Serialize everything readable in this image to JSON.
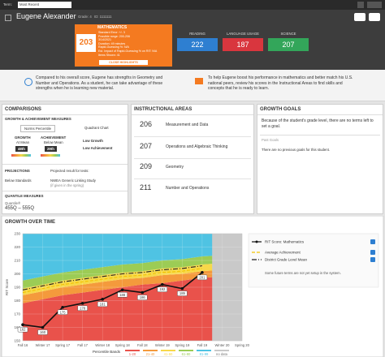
{
  "topbar": {
    "term_label": "Term:",
    "term_value": "Most Recent"
  },
  "header": {
    "student_name": "Eugene Alexander",
    "grade": "Grade: 4",
    "id": "ID: 1111111"
  },
  "math_card": {
    "subject": "MATHEMATICS",
    "score": 203,
    "details": [
      "Standard Error: +/- 3",
      "Possible range: 200-206",
      "3/14/2021",
      "Duration: 49 minutes",
      "Rapid-Guessing %: N/A",
      "Est. Impact of Rapid-Guessing % on RIT: N/A",
      "Items Shown: 41"
    ],
    "button": "CLOSE HIGHLIGHTS"
  },
  "subject_scores": [
    {
      "subject": "READING",
      "score": 222,
      "color": "#2e7fd1"
    },
    {
      "subject": "LANGUAGE USAGE",
      "score": 187,
      "color": "#d9363e"
    },
    {
      "subject": "SCIENCE",
      "score": 207,
      "color": "#33a65a"
    }
  ],
  "highlights": [
    "Compared to his overall score, Eugene has strengths in Geometry and Number and Operations. As a student, he can take advantage of these strengths when he is learning new material.",
    "To help Eugene boost his performance in mathematics and better match his U.S. national peers, review his scores in the Instructional Areas to find skills and concepts that he is ready to learn."
  ],
  "comparisons": {
    "title": "COMPARISONS",
    "subtitle": "GROWTH & ACHIEVEMENT MEASURES",
    "tabs": [
      "Norms Percentile",
      "Quadrant Chart"
    ],
    "growth_label": "GROWTH",
    "growth_desc": "At Mean",
    "growth_percentile": "48th",
    "achievement_label": "ACHIEVEMENT",
    "achievement_desc": "Below Mean",
    "achievement_percentile": "29th",
    "quadrant_growth": "Low Growth",
    "quadrant_achievement": "Low Achievement",
    "projections_title": "PROJECTIONS",
    "projections_note": "Projected result for tests:",
    "projection_result": "Below Standards",
    "projection_study": "NWEA Generic Linking Study",
    "projection_when": "(if given in the spring)",
    "quantile_title": "QUANTILE MEASURES",
    "quantile_label": "Quantile®",
    "quantile_range": "455Q – 555Q"
  },
  "instructional_areas": {
    "title": "INSTRUCTIONAL AREAS",
    "items": [
      {
        "score": 206,
        "name": "Measurement and Data"
      },
      {
        "score": 207,
        "name": "Operations and Algebraic Thinking"
      },
      {
        "score": 209,
        "name": "Geometry"
      },
      {
        "score": 211,
        "name": "Number and Operations"
      }
    ]
  },
  "growth_goals": {
    "title": "GROWTH GOALS",
    "message": "Because of the student's grade level, there are no terms left to set a goal.",
    "past_label": "Past Goals",
    "past_message": "There are no previous goals for this student."
  },
  "chart_data": {
    "type": "line",
    "title": "GROWTH OVER TIME",
    "y_label": "RIT Score",
    "categories": [
      "Fall 16",
      "Winter 17",
      "Spring 17",
      "Fall 17",
      "Winter 18",
      "Spring 18",
      "Fall 18",
      "Winter 19",
      "Spring 19",
      "Fall 19",
      "Winter 20",
      "Spring 20"
    ],
    "ylim": [
      150,
      230
    ],
    "yticks": [
      150,
      160,
      170,
      180,
      190,
      200,
      210,
      220,
      230
    ],
    "grid": true,
    "bands_title": "Percentile Bands",
    "bands": [
      {
        "name": "1-20",
        "color": "#e9524b",
        "upper": [
          178,
          181,
          184,
          186,
          188,
          190,
          192,
          193,
          195,
          197,
          198,
          200
        ]
      },
      {
        "name": "21-40",
        "color": "#f49a3c",
        "upper": [
          184,
          187,
          190,
          192,
          194,
          196,
          197,
          199,
          200,
          202,
          203,
          205
        ]
      },
      {
        "name": "41-60",
        "color": "#f7d84a",
        "upper": [
          189,
          192,
          195,
          197,
          199,
          201,
          202,
          204,
          205,
          207,
          208,
          210
        ]
      },
      {
        "name": "61-80",
        "color": "#9ccc55",
        "upper": [
          195,
          198,
          201,
          203,
          205,
          207,
          208,
          210,
          211,
          213,
          214,
          216
        ]
      },
      {
        "name": "81-99",
        "color": "#4fc3e3",
        "upper": [
          230,
          230,
          230,
          230,
          230,
          230,
          230,
          230,
          230,
          230,
          230,
          230
        ]
      }
    ],
    "no_data_label": "no data",
    "no_data_color": "#c9c9c9",
    "series": [
      {
        "name": "RIT Score: Mathematics",
        "color": "#111111",
        "style": "solid",
        "values": [
          162,
          160,
          175,
          178,
          181,
          188,
          186,
          192,
          189,
          201,
          null,
          null
        ]
      },
      {
        "name": "Average Achievement",
        "color": "#f2c400",
        "style": "dashed",
        "values": [
          186,
          189,
          192,
          194,
          196,
          198,
          199,
          201,
          202,
          204,
          null,
          null
        ]
      },
      {
        "name": "District Grade Level Mean",
        "color": "#222222",
        "style": "dashdot",
        "values": [
          188,
          191,
          194,
          196,
          198,
          200,
          201,
          203,
          204,
          206,
          null,
          null
        ]
      }
    ],
    "note": "Some future terms are not yet setup in the system."
  }
}
